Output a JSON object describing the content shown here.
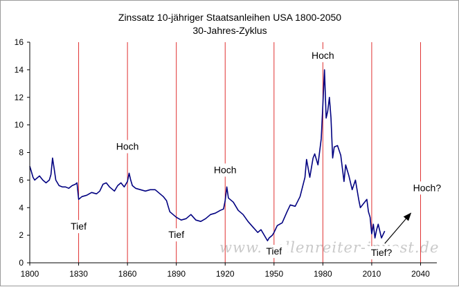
{
  "chart_data": {
    "type": "line",
    "title": "Zinssatz 10-jähriger Staatsanleihen USA 1800-2050",
    "subtitle": "30-Jahres-Zyklus",
    "xlabel": "",
    "ylabel": "",
    "xlim": [
      1800,
      2050
    ],
    "ylim": [
      0,
      16
    ],
    "x_ticks": [
      1800,
      1830,
      1860,
      1890,
      1920,
      1950,
      1980,
      2010,
      2040
    ],
    "y_ticks": [
      0,
      2,
      4,
      6,
      8,
      10,
      12,
      14,
      16
    ],
    "grid": false,
    "line_color": "#000080",
    "cycle_line_color": "#e03030",
    "cycle_lines": [
      1830,
      1860,
      1890,
      1920,
      1950,
      1980,
      2010,
      2040
    ],
    "series": [
      {
        "x": [
          1800,
          1801,
          1802,
          1803,
          1804,
          1806,
          1808,
          1810,
          1812,
          1813,
          1814,
          1815,
          1816,
          1818,
          1820,
          1822,
          1824,
          1826,
          1828,
          1829,
          1830,
          1832,
          1835,
          1838,
          1841,
          1843,
          1845,
          1847,
          1849,
          1852,
          1854,
          1856,
          1858,
          1860,
          1861,
          1862,
          1863,
          1865,
          1868,
          1871,
          1874,
          1877,
          1880,
          1882,
          1884,
          1885,
          1886,
          1888,
          1890,
          1893,
          1896,
          1899,
          1902,
          1905,
          1908,
          1911,
          1914,
          1917,
          1919,
          1920,
          1921,
          1922,
          1925,
          1928,
          1931,
          1934,
          1937,
          1940,
          1942,
          1944,
          1946,
          1947,
          1949,
          1950,
          1952,
          1955,
          1958,
          1960,
          1963,
          1966,
          1969,
          1970,
          1972,
          1974,
          1975,
          1977,
          1979,
          1980,
          1981,
          1982,
          1983,
          1984,
          1985,
          1986,
          1987,
          1989,
          1991,
          1993,
          1994,
          1996,
          1998,
          2000,
          2002,
          2003,
          2005,
          2007,
          2008,
          2009,
          2010,
          2011,
          2012,
          2013,
          2014,
          2016,
          2018
        ],
        "y": [
          7.0,
          6.6,
          6.2,
          6.0,
          6.1,
          6.3,
          6.0,
          5.8,
          6.0,
          6.4,
          7.6,
          6.8,
          6.0,
          5.6,
          5.5,
          5.5,
          5.4,
          5.6,
          5.7,
          5.8,
          4.6,
          4.8,
          4.9,
          5.1,
          5.0,
          5.2,
          5.7,
          5.8,
          5.5,
          5.2,
          5.6,
          5.8,
          5.5,
          5.9,
          6.5,
          6.0,
          5.6,
          5.4,
          5.3,
          5.2,
          5.3,
          5.3,
          5.0,
          4.8,
          4.5,
          4.1,
          3.7,
          3.5,
          3.3,
          3.1,
          3.2,
          3.5,
          3.1,
          3.0,
          3.2,
          3.5,
          3.6,
          3.8,
          3.9,
          4.5,
          5.5,
          4.7,
          4.4,
          3.8,
          3.5,
          3.0,
          2.6,
          2.2,
          2.4,
          2.0,
          1.6,
          1.8,
          2.0,
          2.2,
          2.7,
          2.9,
          3.7,
          4.2,
          4.1,
          4.8,
          6.2,
          7.5,
          6.2,
          7.6,
          7.9,
          7.1,
          9.0,
          11.5,
          14.0,
          10.5,
          11.0,
          12.0,
          10.5,
          7.6,
          8.4,
          8.5,
          7.8,
          5.9,
          7.1,
          6.3,
          5.3,
          6.0,
          4.6,
          4.0,
          4.3,
          4.6,
          3.7,
          3.3,
          2.1,
          2.8,
          1.8,
          2.4,
          2.8,
          1.8,
          2.3
        ]
      }
    ],
    "annotations": [
      {
        "text": "Tief",
        "x": 1830,
        "y": 2.4
      },
      {
        "text": "Hoch",
        "x": 1860,
        "y": 8.2
      },
      {
        "text": "Tief",
        "x": 1890,
        "y": 1.8
      },
      {
        "text": "Hoch",
        "x": 1920,
        "y": 6.5
      },
      {
        "text": "Tief",
        "x": 1950,
        "y": 0.6
      },
      {
        "text": "Hoch",
        "x": 1980,
        "y": 14.8
      },
      {
        "text": "Tief?",
        "x": 2016,
        "y": 0.5
      },
      {
        "text": "Hoch?",
        "x": 2044,
        "y": 5.2
      }
    ],
    "arrow": {
      "from": [
        2018,
        1.4
      ],
      "to": [
        2034,
        3.6
      ]
    },
    "watermark": "www.wellenreiter-invest.de"
  }
}
